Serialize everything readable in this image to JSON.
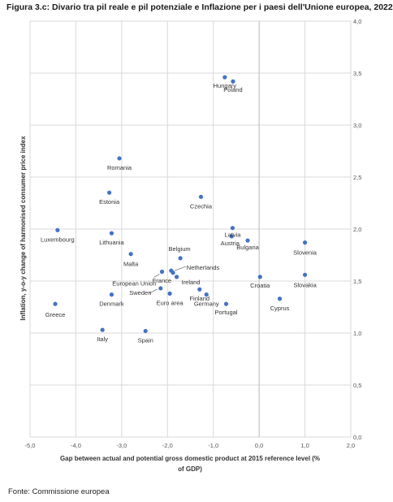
{
  "figure_title": "Figura 3.c: Divario tra pil reale e pil potenziale e Inflazione per i paesi dell'Unione europea, 2022",
  "source": "Fonte: Commissione europea",
  "chart_data": {
    "type": "scatter",
    "title": "Figura 3.c: Divario tra pil reale e pil potenziale e Inflazione per i paesi dell'Unione europea, 2022",
    "xlabel": "Gap between actual and potential gross domestic product at 2015 reference level (% of GDP)",
    "ylabel": "Inflation, y-o-y change of harmonised consumer price index",
    "xlim": [
      -5,
      2
    ],
    "ylim": [
      0,
      4
    ],
    "x_ticks": [
      "-5,0",
      "-4,0",
      "-3,0",
      "-2,0",
      "-1,0",
      "0,0",
      "1,0",
      "2,0"
    ],
    "y_ticks": [
      "0,0",
      "0,5",
      "1,0",
      "1,5",
      "2,0",
      "2,5",
      "3,0",
      "3,5",
      "4,0"
    ],
    "grid": true,
    "color": "#4472C4",
    "points": [
      {
        "label": "Hungary",
        "x": -0.75,
        "y": 3.46
      },
      {
        "label": "Poland",
        "x": -0.57,
        "y": 3.42
      },
      {
        "label": "Romania",
        "x": -3.05,
        "y": 2.68
      },
      {
        "label": "Estonia",
        "x": -3.27,
        "y": 2.35
      },
      {
        "label": "Czechia",
        "x": -1.27,
        "y": 2.31
      },
      {
        "label": "Luxembourg",
        "x": -4.4,
        "y": 1.99
      },
      {
        "label": "Lithuania",
        "x": -3.22,
        "y": 1.96
      },
      {
        "label": "Latvia",
        "x": -0.58,
        "y": 2.01
      },
      {
        "label": "Austria",
        "x": -0.6,
        "y": 1.93
      },
      {
        "label": "Bulgaria",
        "x": -0.25,
        "y": 1.89
      },
      {
        "label": "Slovenia",
        "x": 1.0,
        "y": 1.87
      },
      {
        "label": "Malta",
        "x": -2.8,
        "y": 1.76
      },
      {
        "label": "Belgium",
        "x": -1.72,
        "y": 1.72
      },
      {
        "label": "European Union",
        "x": -2.12,
        "y": 1.59
      },
      {
        "label": "Netherlands",
        "x": -1.92,
        "y": 1.6
      },
      {
        "label": "France",
        "x": -1.88,
        "y": 1.58
      },
      {
        "label": "Ireland",
        "x": -1.8,
        "y": 1.54
      },
      {
        "label": "Slovakia",
        "x": 1.0,
        "y": 1.56
      },
      {
        "label": "Croatia",
        "x": 0.02,
        "y": 1.54
      },
      {
        "label": "Sweden",
        "x": -2.15,
        "y": 1.43
      },
      {
        "label": "Finland",
        "x": -1.3,
        "y": 1.42
      },
      {
        "label": "Euro area",
        "x": -1.95,
        "y": 1.38
      },
      {
        "label": "Germany",
        "x": -1.15,
        "y": 1.37
      },
      {
        "label": "Denmark",
        "x": -3.22,
        "y": 1.37
      },
      {
        "label": "Cyprus",
        "x": 0.45,
        "y": 1.33
      },
      {
        "label": "Portugal",
        "x": -0.72,
        "y": 1.28
      },
      {
        "label": "Greece",
        "x": -4.45,
        "y": 1.28
      },
      {
        "label": "Italy",
        "x": -3.42,
        "y": 1.03
      },
      {
        "label": "Spain",
        "x": -2.48,
        "y": 1.02
      }
    ]
  }
}
